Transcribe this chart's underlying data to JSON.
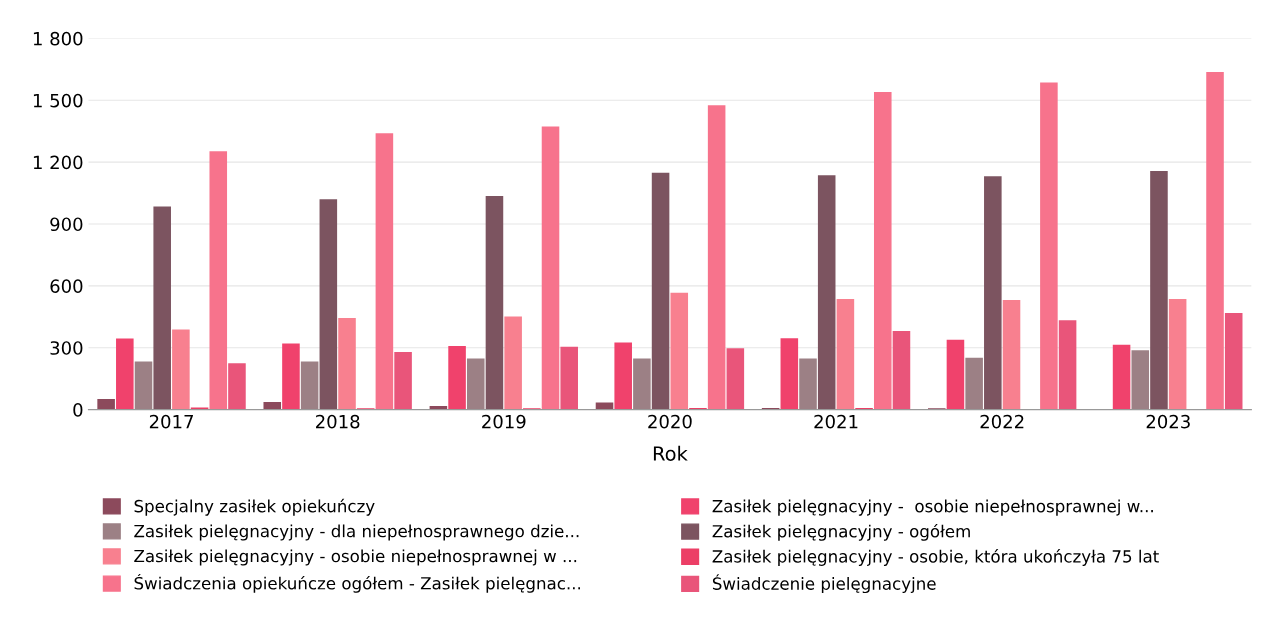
{
  "chart_data": {
    "type": "bar",
    "xlabel": "Rok",
    "categories": [
      "2017",
      "2018",
      "2019",
      "2020",
      "2021",
      "2022",
      "2023"
    ],
    "series": [
      {
        "name": "Specjalny zasiłek opiekuńczy",
        "color": "#8c4a5c",
        "values": [
          52,
          37,
          17,
          35,
          8,
          6,
          0
        ]
      },
      {
        "name": "Zasiłek pielęgnacyjny -  osobie niepełnosprawnej w...",
        "color": "#f0426c",
        "values": [
          345,
          320,
          308,
          325,
          346,
          339,
          315
        ]
      },
      {
        "name": "Zasiłek pielęgnacyjny - dla niepełnosprawnego dzie...",
        "color": "#9c8085",
        "values": [
          233,
          233,
          248,
          248,
          248,
          252,
          288
        ]
      },
      {
        "name": "Zasiłek pielęgnacyjny - ogółem",
        "color": "#7c5460",
        "values": [
          985,
          1020,
          1036,
          1149,
          1136,
          1132,
          1157
        ]
      },
      {
        "name": "Zasiłek pielęgnacyjny - osobie niepełnosprawnej w ...",
        "color": "#f8808f",
        "values": [
          388,
          444,
          452,
          567,
          536,
          532,
          536
        ]
      },
      {
        "name": "Zasiłek pielęgnacyjny - osobie, która ukończyła 75 lat",
        "color": "#ec3f66",
        "values": [
          10,
          6,
          6,
          8,
          8,
          0,
          0
        ]
      },
      {
        "name": "Świadczenia opiekuńcze ogółem - Zasiłek pielęgnac...",
        "color": "#f7738c",
        "values": [
          1253,
          1340,
          1373,
          1476,
          1540,
          1586,
          1637
        ]
      },
      {
        "name": "Świadczenie pielęgnacyjne",
        "color": "#e9557a",
        "values": [
          225,
          279,
          305,
          298,
          381,
          433,
          468
        ]
      }
    ],
    "ylim": [
      0,
      1800
    ],
    "yticks": [
      {
        "value": 0,
        "label": "0"
      },
      {
        "value": 300,
        "label": "300"
      },
      {
        "value": 600,
        "label": "600"
      },
      {
        "value": 900,
        "label": "900"
      },
      {
        "value": 1200,
        "label": "1 200"
      },
      {
        "value": 1500,
        "label": "1 500"
      },
      {
        "value": 1800,
        "label": "1 800"
      }
    ],
    "grid": "y",
    "legend": "bottom"
  }
}
